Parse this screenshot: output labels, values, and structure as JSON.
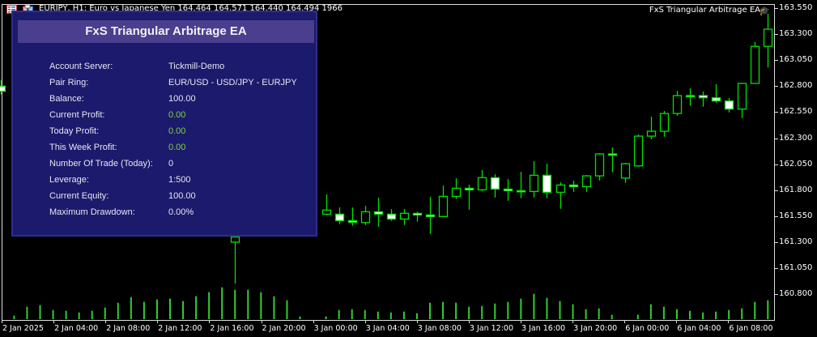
{
  "chart": {
    "symbol_line": "EURJPY, H1: Euro vs Japanese Yen 164.464 164.571 164.440 164.494 1966",
    "ea_name": "FxS Triangular Arbitrage EA",
    "price_labels": [
      "163.550",
      "163.300",
      "163.050",
      "162.800",
      "162.550",
      "162.300",
      "162.050",
      "161.800",
      "161.550",
      "161.300",
      "161.050",
      "160.800"
    ],
    "time_labels": [
      "2 Jan 2025",
      "2 Jan 04:00",
      "2 Jan 08:00",
      "2 Jan 12:00",
      "2 Jan 16:00",
      "2 Jan 20:00",
      "3 Jan 00:00",
      "3 Jan 04:00",
      "3 Jan 08:00",
      "3 Jan 12:00",
      "3 Jan 16:00",
      "3 Jan 20:00",
      "6 Jan 00:00",
      "6 Jan 04:00",
      "6 Jan 08:00"
    ],
    "colors": {
      "bull_outline": "#00e000",
      "bear_fill": "#ffffff",
      "volume": "#32cd32",
      "background": "#000000"
    }
  },
  "chart_data": {
    "type": "candlestick",
    "price_range": [
      160.8,
      163.55
    ],
    "candles": [
      {
        "o": 162.8,
        "h": 162.86,
        "l": 162.72,
        "c": 162.75
      },
      {
        "o": 161.3,
        "h": 161.4,
        "l": 160.901,
        "c": 161.35
      },
      {
        "o": 161.569,
        "h": 161.758,
        "l": 161.558,
        "c": 161.608
      },
      {
        "o": 161.569,
        "h": 161.634,
        "l": 161.472,
        "c": 161.507
      },
      {
        "o": 161.507,
        "h": 161.634,
        "l": 161.457,
        "c": 161.491
      },
      {
        "o": 161.488,
        "h": 161.649,
        "l": 161.465,
        "c": 161.592
      },
      {
        "o": 161.592,
        "h": 161.727,
        "l": 161.449,
        "c": 161.569
      },
      {
        "o": 161.569,
        "h": 161.618,
        "l": 161.504,
        "c": 161.522
      },
      {
        "o": 161.522,
        "h": 161.618,
        "l": 161.465,
        "c": 161.577
      },
      {
        "o": 161.577,
        "h": 161.592,
        "l": 161.496,
        "c": 161.561
      },
      {
        "o": 161.561,
        "h": 161.735,
        "l": 161.379,
        "c": 161.546
      },
      {
        "o": 161.546,
        "h": 161.844,
        "l": 161.543,
        "c": 161.74
      },
      {
        "o": 161.74,
        "h": 161.914,
        "l": 161.714,
        "c": 161.818
      },
      {
        "o": 161.818,
        "h": 161.852,
        "l": 161.613,
        "c": 161.803
      },
      {
        "o": 161.803,
        "h": 161.992,
        "l": 161.792,
        "c": 161.92
      },
      {
        "o": 161.92,
        "h": 161.953,
        "l": 161.729,
        "c": 161.81
      },
      {
        "o": 161.81,
        "h": 161.906,
        "l": 161.698,
        "c": 161.795
      },
      {
        "o": 161.795,
        "h": 161.976,
        "l": 161.722,
        "c": 161.787
      },
      {
        "o": 161.787,
        "h": 162.078,
        "l": 161.729,
        "c": 161.943
      },
      {
        "o": 161.943,
        "h": 162.054,
        "l": 161.722,
        "c": 161.779
      },
      {
        "o": 161.779,
        "h": 161.875,
        "l": 161.62,
        "c": 161.849
      },
      {
        "o": 161.849,
        "h": 161.891,
        "l": 161.784,
        "c": 161.834
      },
      {
        "o": 161.834,
        "h": 161.945,
        "l": 161.784,
        "c": 161.937
      },
      {
        "o": 161.937,
        "h": 162.156,
        "l": 161.893,
        "c": 162.148
      },
      {
        "o": 162.148,
        "h": 162.21,
        "l": 161.971,
        "c": 162.135
      },
      {
        "o": 161.916,
        "h": 162.062,
        "l": 161.87,
        "c": 162.054
      },
      {
        "o": 162.033,
        "h": 162.335,
        "l": 162.025,
        "c": 162.319
      },
      {
        "o": 162.319,
        "h": 162.506,
        "l": 162.29,
        "c": 162.366
      },
      {
        "o": 162.366,
        "h": 162.561,
        "l": 162.313,
        "c": 162.537
      },
      {
        "o": 162.537,
        "h": 162.755,
        "l": 162.516,
        "c": 162.709
      },
      {
        "o": 162.709,
        "h": 162.779,
        "l": 162.61,
        "c": 162.701
      },
      {
        "o": 162.709,
        "h": 162.748,
        "l": 162.602,
        "c": 162.688
      },
      {
        "o": 162.688,
        "h": 162.818,
        "l": 162.641,
        "c": 162.657
      },
      {
        "o": 162.657,
        "h": 162.685,
        "l": 162.547,
        "c": 162.579
      },
      {
        "o": 162.579,
        "h": 162.833,
        "l": 162.493,
        "c": 162.826
      },
      {
        "o": 162.826,
        "h": 163.225,
        "l": 162.823,
        "c": 163.182
      },
      {
        "o": 163.182,
        "h": 163.498,
        "l": 162.979,
        "c": 163.347
      }
    ],
    "candle_slots": [
      -1,
      17,
      24,
      25,
      26,
      27,
      28,
      29,
      30,
      31,
      32,
      33,
      34,
      35,
      36,
      37,
      38,
      39,
      40,
      41,
      42,
      43,
      44,
      45,
      46,
      47,
      48,
      49,
      50,
      51,
      52,
      53,
      54,
      55,
      56,
      57,
      58
    ],
    "volumes": [
      13,
      46,
      52,
      34,
      31,
      25,
      31,
      43,
      61,
      82,
      64,
      73,
      76,
      67,
      85,
      100,
      118,
      109,
      109,
      100,
      85,
      70,
      10,
      0,
      10,
      34,
      37,
      34,
      28,
      25,
      28,
      22,
      61,
      64,
      61,
      46,
      49,
      58,
      64,
      76,
      94,
      79,
      67,
      55,
      37,
      40,
      16,
      0,
      16,
      55,
      46,
      37,
      31,
      25,
      28,
      34,
      40,
      64,
      70
    ]
  },
  "panel": {
    "title": "FxS Triangular Arbitrage EA",
    "rows": [
      {
        "label": "Account Server:",
        "value": "Tickmill-Demo",
        "green": false
      },
      {
        "label": "Pair Ring:",
        "value": "EUR/USD - USD/JPY - EURJPY",
        "green": false
      },
      {
        "label": "Balance:",
        "value": "100.00",
        "green": false
      },
      {
        "label": "Current Profit:",
        "value": "0.00",
        "green": true
      },
      {
        "label": "Today Profit:",
        "value": "0.00",
        "green": true
      },
      {
        "label": "This Week Profit:",
        "value": "0.00",
        "green": true
      },
      {
        "label": "Number Of Trade (Today):",
        "value": "0",
        "green": false
      },
      {
        "label": "Leverage:",
        "value": "1:500",
        "green": false
      },
      {
        "label": "Current Equity:",
        "value": "100.00",
        "green": false
      },
      {
        "label": "Maximum Drawdown:",
        "value": "0.00%",
        "green": false
      }
    ]
  }
}
